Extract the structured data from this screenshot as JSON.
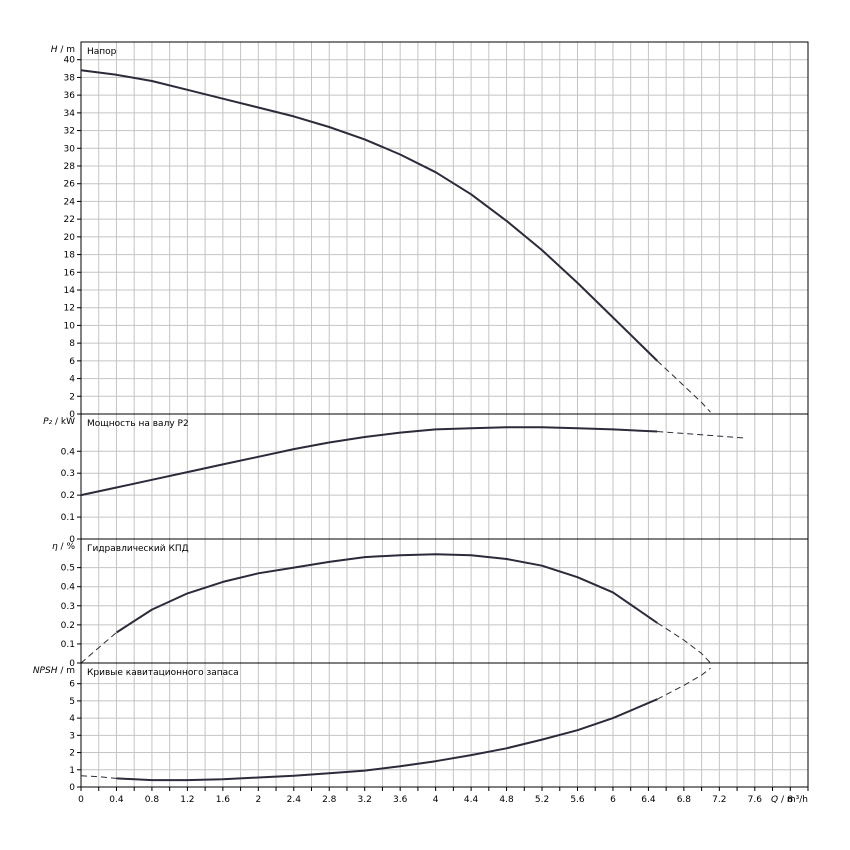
{
  "chart_data": [
    {
      "type": "line",
      "panel": "head",
      "title": "Напор",
      "ylabel_symbol": "H",
      "ylabel_unit": " / m",
      "ylim": [
        0,
        42
      ],
      "ytick_step": 2,
      "ytick_labels": [
        "0",
        "2",
        "4",
        "6",
        "8",
        "10",
        "12",
        "14",
        "16",
        "18",
        "20",
        "22",
        "24",
        "26",
        "28",
        "30",
        "32",
        "34",
        "36",
        "38",
        "40"
      ],
      "xlim": [
        0,
        8.2
      ],
      "series": [
        {
          "points": [
            [
              0,
              38.8
            ],
            [
              0.4,
              38.3
            ],
            [
              0.8,
              37.6
            ],
            [
              1.2,
              36.6
            ],
            [
              1.6,
              35.6
            ],
            [
              2.0,
              34.6
            ],
            [
              2.4,
              33.6
            ],
            [
              2.8,
              32.4
            ],
            [
              3.2,
              31.0
            ],
            [
              3.6,
              29.3
            ],
            [
              4.0,
              27.3
            ],
            [
              4.4,
              24.8
            ],
            [
              4.8,
              21.8
            ],
            [
              5.2,
              18.5
            ],
            [
              5.6,
              14.8
            ],
            [
              6.0,
              10.9
            ],
            [
              6.5,
              6.0
            ]
          ],
          "extension": [
            [
              6.5,
              6.0
            ],
            [
              6.8,
              3.2
            ],
            [
              7.0,
              1.3
            ],
            [
              7.1,
              0.2
            ]
          ]
        }
      ]
    },
    {
      "type": "line",
      "panel": "power",
      "title": "Мощность на валу P2",
      "ylabel_symbol": "P₂",
      "ylabel_unit": " / kW",
      "ylim": [
        0,
        0.57
      ],
      "ytick_step": 0.1,
      "ytick_labels": [
        "0",
        "0.1",
        "0.2",
        "0.3",
        "0.4"
      ],
      "xlim": [
        0,
        8.2
      ],
      "series": [
        {
          "points": [
            [
              0,
              0.2
            ],
            [
              0.4,
              0.235
            ],
            [
              0.8,
              0.27
            ],
            [
              1.2,
              0.305
            ],
            [
              1.6,
              0.34
            ],
            [
              2.0,
              0.375
            ],
            [
              2.4,
              0.41
            ],
            [
              2.8,
              0.44
            ],
            [
              3.2,
              0.465
            ],
            [
              3.6,
              0.485
            ],
            [
              4.0,
              0.5
            ],
            [
              4.4,
              0.505
            ],
            [
              4.8,
              0.51
            ],
            [
              5.2,
              0.51
            ],
            [
              5.6,
              0.505
            ],
            [
              6.0,
              0.5
            ],
            [
              6.5,
              0.49
            ]
          ],
          "extension": [
            [
              6.5,
              0.49
            ],
            [
              7.0,
              0.475
            ],
            [
              7.5,
              0.46
            ]
          ]
        }
      ]
    },
    {
      "type": "line",
      "panel": "efficiency",
      "title": "Гидравлический КПД",
      "ylabel_symbol": "η",
      "ylabel_unit": " / %",
      "ylim": [
        0,
        0.65
      ],
      "ytick_step": 0.1,
      "ytick_labels": [
        "0",
        "0.1",
        "0.2",
        "0.3",
        "0.4",
        "0.5"
      ],
      "xlim": [
        0,
        8.2
      ],
      "series": [
        {
          "points": [
            [
              0.4,
              0.16
            ],
            [
              0.8,
              0.28
            ],
            [
              1.2,
              0.365
            ],
            [
              1.6,
              0.425
            ],
            [
              2.0,
              0.47
            ],
            [
              2.4,
              0.5
            ],
            [
              2.8,
              0.53
            ],
            [
              3.2,
              0.555
            ],
            [
              3.6,
              0.565
            ],
            [
              4.0,
              0.57
            ],
            [
              4.4,
              0.565
            ],
            [
              4.8,
              0.545
            ],
            [
              5.2,
              0.51
            ],
            [
              5.6,
              0.45
            ],
            [
              6.0,
              0.37
            ],
            [
              6.5,
              0.21
            ]
          ],
          "extension_start": [
            [
              0,
              0.0
            ],
            [
              0.2,
              0.08
            ],
            [
              0.4,
              0.16
            ]
          ],
          "extension": [
            [
              6.5,
              0.21
            ],
            [
              6.8,
              0.12
            ],
            [
              7.0,
              0.05
            ],
            [
              7.1,
              0.0
            ]
          ]
        }
      ]
    },
    {
      "type": "line",
      "panel": "npsh",
      "title": "Кривые кавитационного запаса",
      "ylabel_symbol": "NPSH",
      "ylabel_unit": " / m",
      "ylim": [
        0,
        7.2
      ],
      "ytick_step": 1,
      "ytick_labels": [
        "0",
        "1",
        "2",
        "3",
        "4",
        "5",
        "6"
      ],
      "xlim": [
        0,
        8.2
      ],
      "series": [
        {
          "points": [
            [
              0.4,
              0.5
            ],
            [
              0.8,
              0.4
            ],
            [
              1.2,
              0.4
            ],
            [
              1.6,
              0.45
            ],
            [
              2.0,
              0.55
            ],
            [
              2.4,
              0.65
            ],
            [
              2.8,
              0.8
            ],
            [
              3.2,
              0.95
            ],
            [
              3.6,
              1.2
            ],
            [
              4.0,
              1.5
            ],
            [
              4.4,
              1.85
            ],
            [
              4.8,
              2.25
            ],
            [
              5.2,
              2.75
            ],
            [
              5.6,
              3.3
            ],
            [
              6.0,
              4.0
            ],
            [
              6.5,
              5.1
            ]
          ],
          "extension_start": [
            [
              0,
              0.65
            ],
            [
              0.2,
              0.6
            ],
            [
              0.4,
              0.5
            ]
          ],
          "extension": [
            [
              6.5,
              5.1
            ],
            [
              6.8,
              5.9
            ],
            [
              7.0,
              6.5
            ],
            [
              7.1,
              6.9
            ]
          ]
        }
      ]
    }
  ],
  "x_axis": {
    "label_symbol": "Q",
    "label_unit": " / m³/h",
    "tick_labels": [
      "0",
      "0.4",
      "0.8",
      "1.2",
      "1.6",
      "2",
      "2.4",
      "2.8",
      "3.2",
      "3.6",
      "4",
      "4.4",
      "4.8",
      "5.2",
      "5.6",
      "6",
      "6.4",
      "6.8",
      "7.2",
      "7.6",
      "8"
    ],
    "minor_step": 0.2,
    "major_step": 0.4
  },
  "colors": {
    "curve": "#2b2b3a",
    "grid": "#c4c4c4",
    "frame": "#000000"
  }
}
